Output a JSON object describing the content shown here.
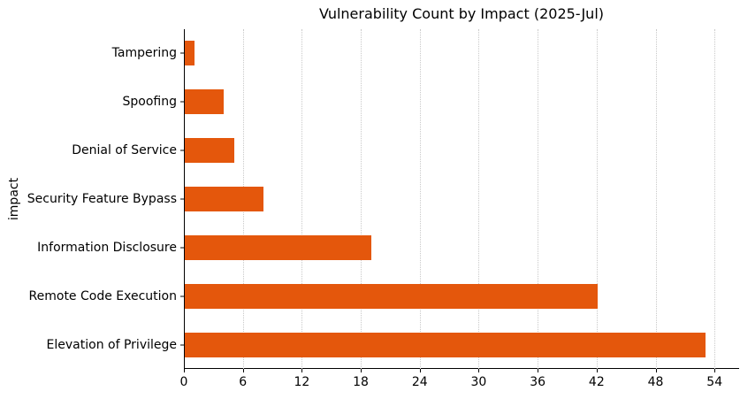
{
  "chart_data": {
    "type": "bar",
    "orientation": "horizontal",
    "title": "Vulnerability Count by Impact (2025-Jul)",
    "xlabel": "",
    "ylabel": "impact",
    "categories": [
      "Tampering",
      "Spoofing",
      "Denial of Service",
      "Security Feature Bypass",
      "Information Disclosure",
      "Remote Code Execution",
      "Elevation of Privilege"
    ],
    "values": [
      1,
      4,
      5,
      8,
      19,
      42,
      53
    ],
    "xticks": [
      0,
      6,
      12,
      18,
      24,
      30,
      36,
      42,
      48,
      54
    ],
    "xlim": [
      0,
      56.5
    ],
    "grid": true,
    "legend_position": "none",
    "bar_color": "#e4570c",
    "gridline_color": "#c9c9c9",
    "spine_color": "#000000",
    "text_color": "#000000",
    "background_color": "#ffffff"
  }
}
